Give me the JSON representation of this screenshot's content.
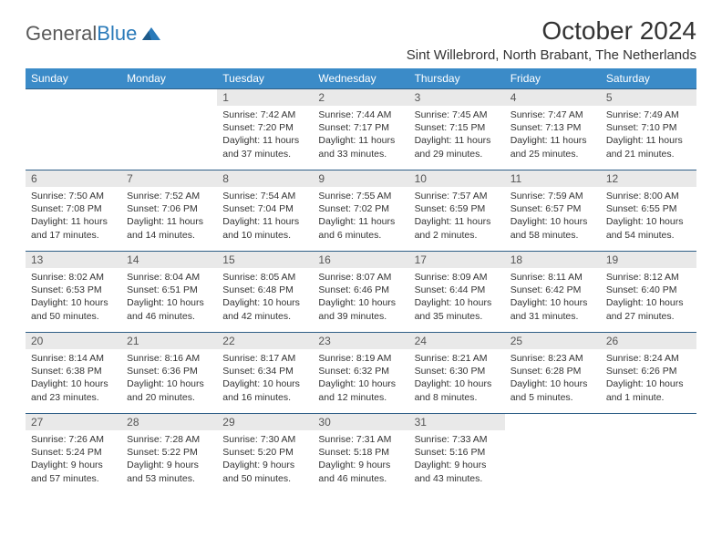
{
  "logo": {
    "text1": "General",
    "text2": "Blue"
  },
  "title": "October 2024",
  "location": "Sint Willebrord, North Brabant, The Netherlands",
  "colors": {
    "header_bg": "#3b8bc8",
    "header_text": "#ffffff",
    "daynum_bg": "#e9e9e9",
    "row_border": "#2f5f87",
    "body_text": "#333333",
    "logo_gray": "#5a5a5a",
    "logo_blue": "#2a7ab9"
  },
  "weekdays": [
    "Sunday",
    "Monday",
    "Tuesday",
    "Wednesday",
    "Thursday",
    "Friday",
    "Saturday"
  ],
  "weeks": [
    [
      {
        "n": "",
        "sr": "",
        "ss": "",
        "dl": ""
      },
      {
        "n": "",
        "sr": "",
        "ss": "",
        "dl": ""
      },
      {
        "n": "1",
        "sr": "7:42 AM",
        "ss": "7:20 PM",
        "dl": "11 hours and 37 minutes."
      },
      {
        "n": "2",
        "sr": "7:44 AM",
        "ss": "7:17 PM",
        "dl": "11 hours and 33 minutes."
      },
      {
        "n": "3",
        "sr": "7:45 AM",
        "ss": "7:15 PM",
        "dl": "11 hours and 29 minutes."
      },
      {
        "n": "4",
        "sr": "7:47 AM",
        "ss": "7:13 PM",
        "dl": "11 hours and 25 minutes."
      },
      {
        "n": "5",
        "sr": "7:49 AM",
        "ss": "7:10 PM",
        "dl": "11 hours and 21 minutes."
      }
    ],
    [
      {
        "n": "6",
        "sr": "7:50 AM",
        "ss": "7:08 PM",
        "dl": "11 hours and 17 minutes."
      },
      {
        "n": "7",
        "sr": "7:52 AM",
        "ss": "7:06 PM",
        "dl": "11 hours and 14 minutes."
      },
      {
        "n": "8",
        "sr": "7:54 AM",
        "ss": "7:04 PM",
        "dl": "11 hours and 10 minutes."
      },
      {
        "n": "9",
        "sr": "7:55 AM",
        "ss": "7:02 PM",
        "dl": "11 hours and 6 minutes."
      },
      {
        "n": "10",
        "sr": "7:57 AM",
        "ss": "6:59 PM",
        "dl": "11 hours and 2 minutes."
      },
      {
        "n": "11",
        "sr": "7:59 AM",
        "ss": "6:57 PM",
        "dl": "10 hours and 58 minutes."
      },
      {
        "n": "12",
        "sr": "8:00 AM",
        "ss": "6:55 PM",
        "dl": "10 hours and 54 minutes."
      }
    ],
    [
      {
        "n": "13",
        "sr": "8:02 AM",
        "ss": "6:53 PM",
        "dl": "10 hours and 50 minutes."
      },
      {
        "n": "14",
        "sr": "8:04 AM",
        "ss": "6:51 PM",
        "dl": "10 hours and 46 minutes."
      },
      {
        "n": "15",
        "sr": "8:05 AM",
        "ss": "6:48 PM",
        "dl": "10 hours and 42 minutes."
      },
      {
        "n": "16",
        "sr": "8:07 AM",
        "ss": "6:46 PM",
        "dl": "10 hours and 39 minutes."
      },
      {
        "n": "17",
        "sr": "8:09 AM",
        "ss": "6:44 PM",
        "dl": "10 hours and 35 minutes."
      },
      {
        "n": "18",
        "sr": "8:11 AM",
        "ss": "6:42 PM",
        "dl": "10 hours and 31 minutes."
      },
      {
        "n": "19",
        "sr": "8:12 AM",
        "ss": "6:40 PM",
        "dl": "10 hours and 27 minutes."
      }
    ],
    [
      {
        "n": "20",
        "sr": "8:14 AM",
        "ss": "6:38 PM",
        "dl": "10 hours and 23 minutes."
      },
      {
        "n": "21",
        "sr": "8:16 AM",
        "ss": "6:36 PM",
        "dl": "10 hours and 20 minutes."
      },
      {
        "n": "22",
        "sr": "8:17 AM",
        "ss": "6:34 PM",
        "dl": "10 hours and 16 minutes."
      },
      {
        "n": "23",
        "sr": "8:19 AM",
        "ss": "6:32 PM",
        "dl": "10 hours and 12 minutes."
      },
      {
        "n": "24",
        "sr": "8:21 AM",
        "ss": "6:30 PM",
        "dl": "10 hours and 8 minutes."
      },
      {
        "n": "25",
        "sr": "8:23 AM",
        "ss": "6:28 PM",
        "dl": "10 hours and 5 minutes."
      },
      {
        "n": "26",
        "sr": "8:24 AM",
        "ss": "6:26 PM",
        "dl": "10 hours and 1 minute."
      }
    ],
    [
      {
        "n": "27",
        "sr": "7:26 AM",
        "ss": "5:24 PM",
        "dl": "9 hours and 57 minutes."
      },
      {
        "n": "28",
        "sr": "7:28 AM",
        "ss": "5:22 PM",
        "dl": "9 hours and 53 minutes."
      },
      {
        "n": "29",
        "sr": "7:30 AM",
        "ss": "5:20 PM",
        "dl": "9 hours and 50 minutes."
      },
      {
        "n": "30",
        "sr": "7:31 AM",
        "ss": "5:18 PM",
        "dl": "9 hours and 46 minutes."
      },
      {
        "n": "31",
        "sr": "7:33 AM",
        "ss": "5:16 PM",
        "dl": "9 hours and 43 minutes."
      },
      {
        "n": "",
        "sr": "",
        "ss": "",
        "dl": ""
      },
      {
        "n": "",
        "sr": "",
        "ss": "",
        "dl": ""
      }
    ]
  ],
  "labels": {
    "sunrise": "Sunrise:",
    "sunset": "Sunset:",
    "daylight": "Daylight:"
  }
}
